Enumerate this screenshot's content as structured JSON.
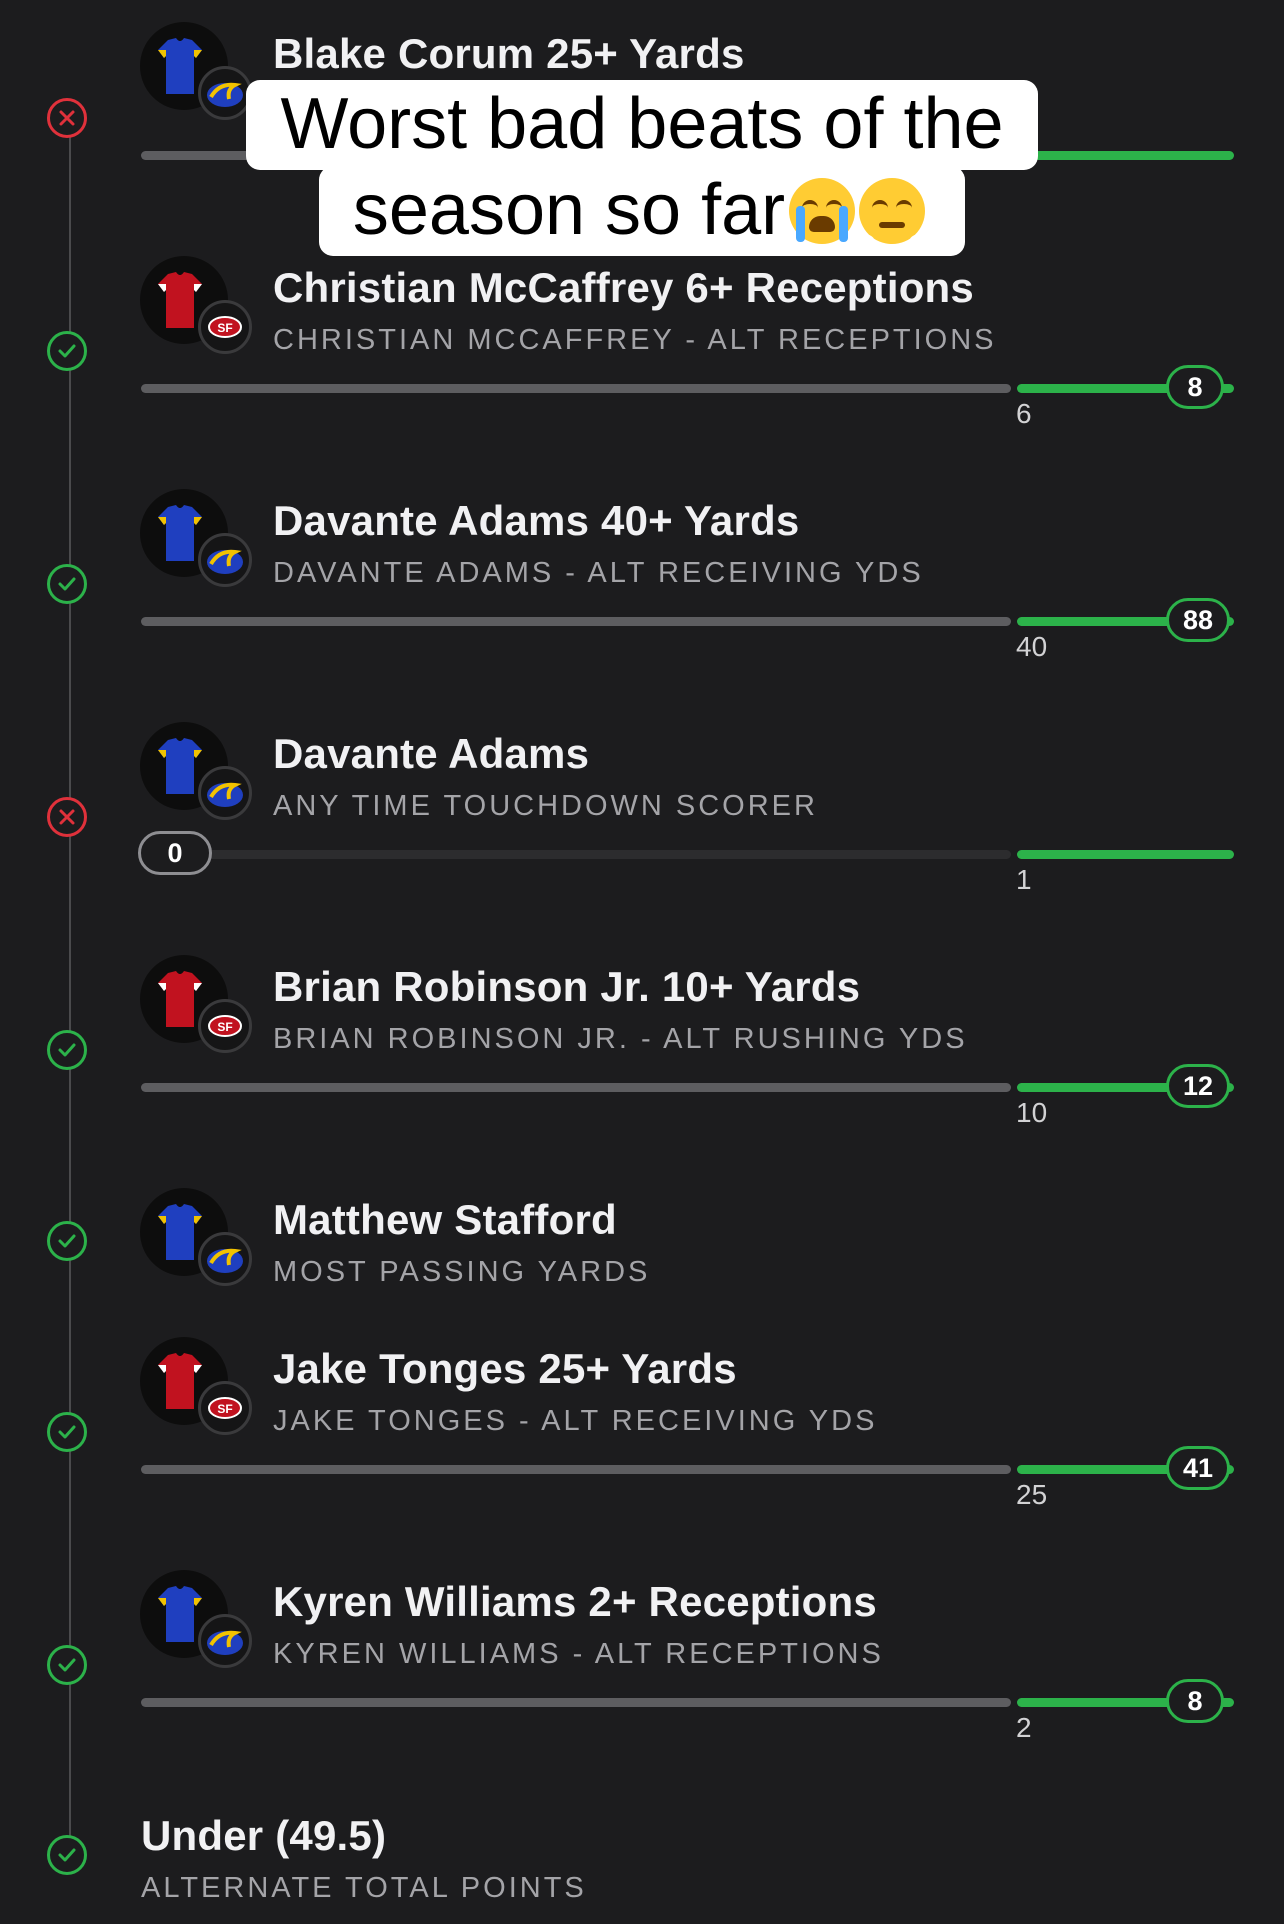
{
  "caption": {
    "line1": "Worst bad beats of the",
    "line2": "season so far"
  },
  "colors": {
    "background": "#1c1c1e",
    "won_green": "#2cb24a",
    "lost_red": "#e0313b",
    "track_grey": "#5d5d60",
    "rams_blue": "#1f3fbf",
    "niners_red": "#c1121f"
  },
  "legs": [
    {
      "status": "lost",
      "team": "rams",
      "title": "Blake Corum 25+ Yards",
      "subtitle": "",
      "threshold": "",
      "result": ""
    },
    {
      "status": "won",
      "team": "49ers",
      "title": "Christian McCaffrey 6+ Receptions",
      "subtitle": "CHRISTIAN MCCAFFREY - ALT RECEPTIONS",
      "threshold": "6",
      "result": "8"
    },
    {
      "status": "won",
      "team": "rams",
      "title": "Davante Adams 40+ Yards",
      "subtitle": "DAVANTE ADAMS - ALT RECEIVING YDS",
      "threshold": "40",
      "result": "88"
    },
    {
      "status": "lost",
      "team": "rams",
      "title": "Davante Adams",
      "subtitle": "ANY TIME TOUCHDOWN SCORER",
      "threshold": "1",
      "result": "0"
    },
    {
      "status": "won",
      "team": "49ers",
      "title": "Brian Robinson Jr. 10+ Yards",
      "subtitle": "BRIAN ROBINSON JR. - ALT RUSHING YDS",
      "threshold": "10",
      "result": "12"
    },
    {
      "status": "won",
      "team": "rams",
      "title": "Matthew Stafford",
      "subtitle": "MOST PASSING YARDS",
      "threshold": "",
      "result": ""
    },
    {
      "status": "won",
      "team": "49ers",
      "title": "Jake Tonges 25+ Yards",
      "subtitle": "JAKE TONGES - ALT RECEIVING YDS",
      "threshold": "25",
      "result": "41"
    },
    {
      "status": "won",
      "team": "rams",
      "title": "Kyren Williams 2+ Receptions",
      "subtitle": "KYREN WILLIAMS - ALT RECEPTIONS",
      "threshold": "2",
      "result": "8"
    },
    {
      "status": "won",
      "team": "",
      "title": "Under (49.5)",
      "subtitle": "ALTERNATE TOTAL POINTS",
      "threshold": "",
      "result": ""
    }
  ],
  "icons": {
    "won": "check-icon",
    "lost": "x-icon",
    "rams_logo": "rams-logo-icon",
    "niners_logo": "49ers-logo-icon",
    "jersey": "jersey-icon",
    "emoji1": "loudly-crying-face-icon",
    "emoji2": "face-with-steam-icon"
  }
}
